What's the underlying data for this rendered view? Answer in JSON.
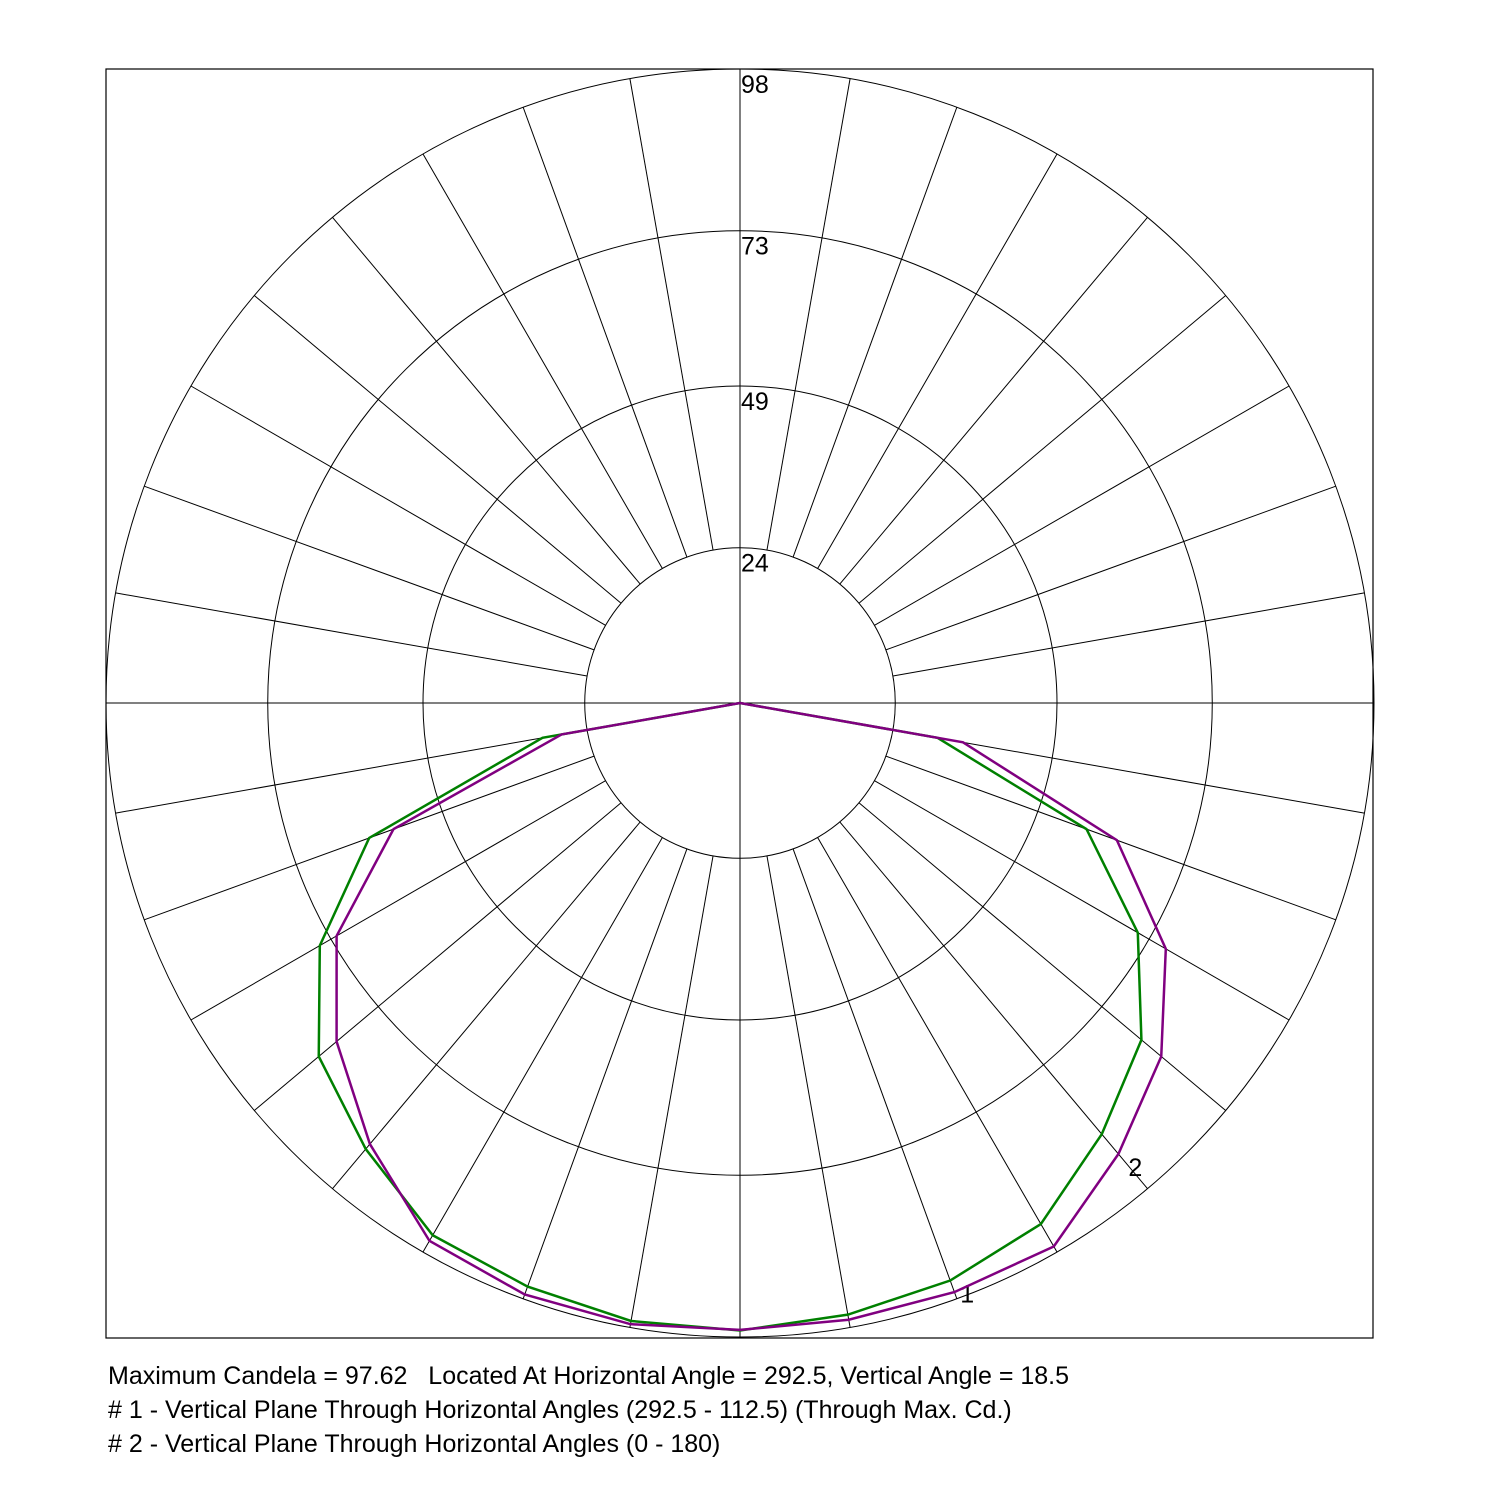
{
  "chart_data": {
    "type": "polar",
    "angles": [
      -90,
      -80,
      -70,
      -60,
      -50,
      -40,
      -30,
      -20,
      -10,
      0,
      10,
      20,
      30,
      40,
      50,
      60,
      70,
      80,
      90
    ],
    "rlim": [
      0,
      98
    ],
    "rticks": [
      24,
      49,
      73,
      98
    ],
    "series": [
      {
        "name": "1",
        "color": "#008000",
        "values": [
          0,
          31,
          61,
          75,
          85,
          90,
          95,
          96,
          97,
          97,
          96,
          95,
          93,
          87,
          81,
          71,
          57,
          31,
          0
        ]
      },
      {
        "name": "2",
        "color": "#800080",
        "values": [
          0,
          28,
          57,
          72,
          81.4,
          89,
          96,
          97.3,
          97.5,
          96.9,
          96.8,
          96.9,
          97,
          91,
          85,
          76,
          62,
          35,
          0
        ]
      }
    ],
    "notes": [
      "Maximum Candela = 97.62   Located At Horizontal Angle = 292.5, Vertical Angle = 18.5",
      "# 1 - Vertical Plane Through Horizontal Angles (292.5 - 112.5) (Through Max. Cd.)",
      "# 2 - Vertical Plane Through Horizontal Angles (0 - 180)"
    ]
  }
}
